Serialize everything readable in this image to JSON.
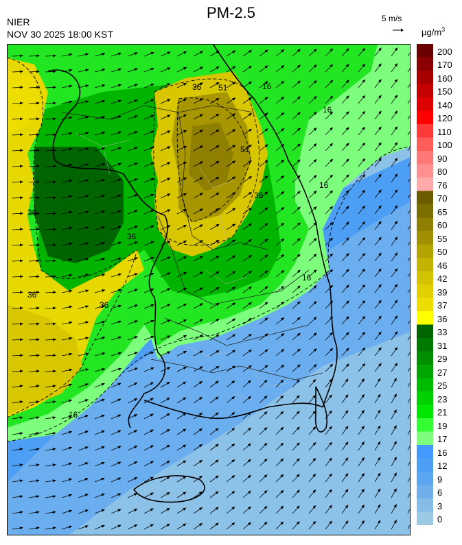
{
  "header": {
    "title": "PM-2.5",
    "agency": "NIER",
    "timestamp": "NOV 30 2025 18:00 KST",
    "wind_scale": "5 m/s",
    "unit_base": "µg/m",
    "unit_exp": "3"
  },
  "legend": {
    "levels": [
      {
        "label": "200",
        "color": "#6b0000"
      },
      {
        "label": "170",
        "color": "#8b0000"
      },
      {
        "label": "160",
        "color": "#a80000"
      },
      {
        "label": "150",
        "color": "#c40000"
      },
      {
        "label": "140",
        "color": "#dd0000"
      },
      {
        "label": "120",
        "color": "#ff0000"
      },
      {
        "label": "110",
        "color": "#ff3a3a"
      },
      {
        "label": "100",
        "color": "#ff5c5c"
      },
      {
        "label": "90",
        "color": "#ff7878"
      },
      {
        "label": "80",
        "color": "#ff9090"
      },
      {
        "label": "76",
        "color": "#ffaaaa"
      },
      {
        "label": "70",
        "color": "#6b5c00"
      },
      {
        "label": "65",
        "color": "#7d6e00"
      },
      {
        "label": "60",
        "color": "#8f7f00"
      },
      {
        "label": "55",
        "color": "#a39000"
      },
      {
        "label": "50",
        "color": "#b4a200"
      },
      {
        "label": "46",
        "color": "#c4b200"
      },
      {
        "label": "42",
        "color": "#d3c200"
      },
      {
        "label": "39",
        "color": "#e0d000"
      },
      {
        "label": "37",
        "color": "#eedd00"
      },
      {
        "label": "36",
        "color": "#ffff00"
      },
      {
        "label": "33",
        "color": "#006400"
      },
      {
        "label": "31",
        "color": "#007a00"
      },
      {
        "label": "29",
        "color": "#008f00"
      },
      {
        "label": "27",
        "color": "#00a500"
      },
      {
        "label": "25",
        "color": "#00bb00"
      },
      {
        "label": "23",
        "color": "#00d000"
      },
      {
        "label": "21",
        "color": "#00e600"
      },
      {
        "label": "19",
        "color": "#33ff33"
      },
      {
        "label": "17",
        "color": "#7dff7d"
      },
      {
        "label": "16",
        "color": "#4499ff"
      },
      {
        "label": "12",
        "color": "#4d9ff5"
      },
      {
        "label": "9",
        "color": "#5aa6f0"
      },
      {
        "label": "6",
        "color": "#6fb0ec"
      },
      {
        "label": "3",
        "color": "#85bde8"
      },
      {
        "label": "0",
        "color": "#9ccae6"
      }
    ]
  },
  "contour_labels": [
    "36",
    "51",
    "16",
    "51",
    "16",
    "16",
    "36",
    "36",
    "36",
    "36",
    "16",
    "36",
    "16"
  ]
}
